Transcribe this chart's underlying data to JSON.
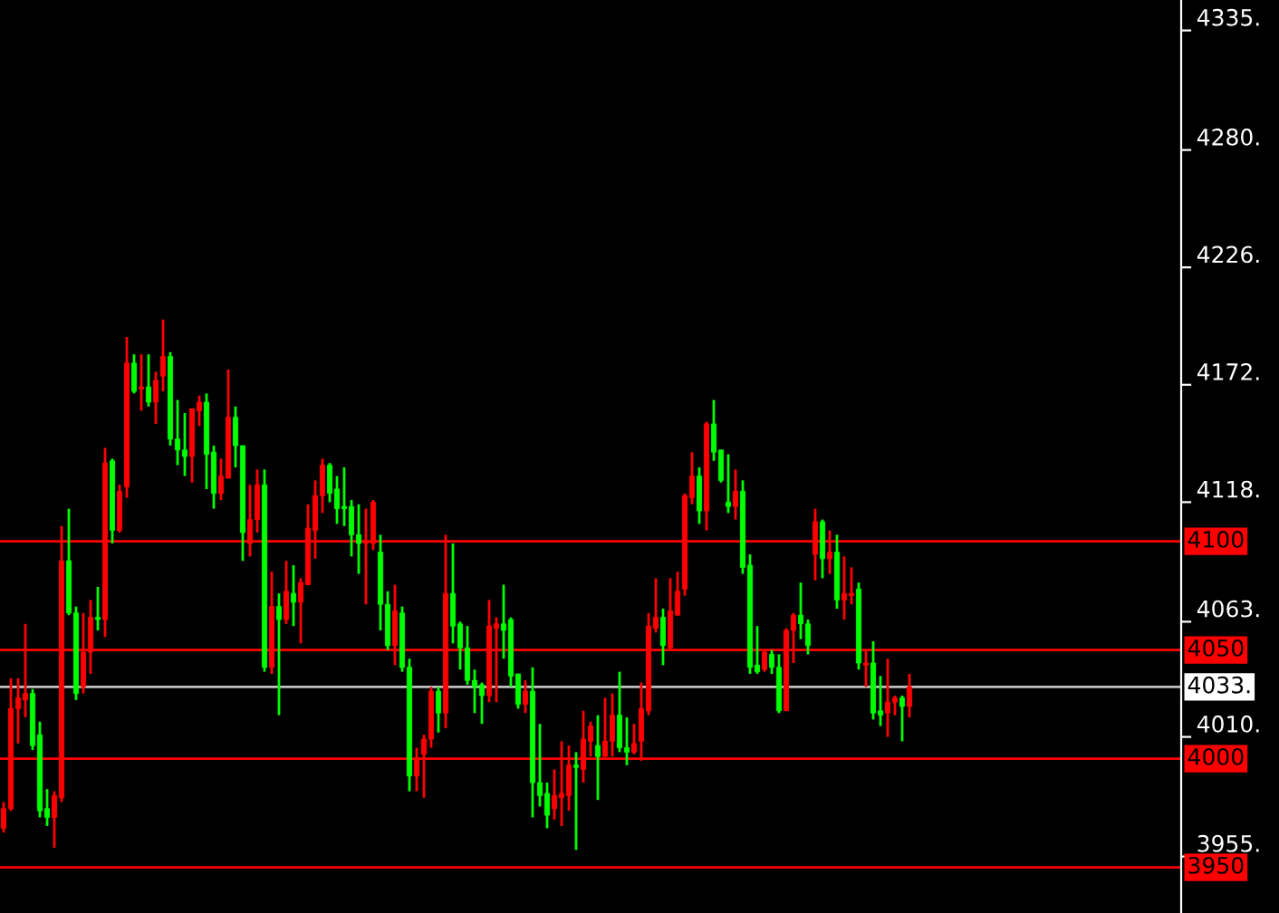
{
  "chart_data": {
    "type": "candlestick",
    "categories": [
      null,
      null,
      null,
      null,
      null,
      null,
      null,
      null,
      null,
      null,
      null,
      null,
      null,
      null,
      null,
      null,
      null,
      null,
      null,
      null,
      null,
      null,
      null,
      null,
      null,
      null,
      null,
      null,
      null,
      null,
      null,
      null,
      null,
      null,
      null,
      null,
      null,
      null,
      null,
      null,
      null,
      null,
      null,
      null,
      null,
      null,
      null,
      null,
      null,
      null,
      null,
      null,
      null,
      null,
      null,
      null,
      null,
      null,
      null,
      null,
      null,
      null,
      null,
      null,
      null,
      null,
      null,
      null,
      null,
      null,
      null,
      null,
      null,
      null,
      null,
      null,
      null,
      null,
      null,
      null,
      null,
      null,
      null,
      null,
      null,
      null,
      null,
      null,
      null,
      null,
      null,
      null,
      null,
      null,
      null,
      null,
      null,
      null,
      null,
      null,
      null,
      null,
      null,
      null,
      null,
      null,
      null,
      null,
      null,
      null,
      null,
      null,
      null,
      null,
      null,
      null,
      null,
      null,
      null,
      null,
      null,
      null,
      null,
      null,
      null,
      null,
      null,
      null,
      null,
      null,
      null,
      null,
      null,
      null,
      null,
      null,
      null,
      null,
      null,
      null,
      null,
      null,
      null,
      null,
      null,
      null,
      null,
      null,
      null,
      null,
      null,
      null,
      null,
      null,
      null,
      null,
      null,
      null,
      null,
      null,
      null,
      null,
      null
    ],
    "ohlc": [
      [
        3968,
        3980,
        3966,
        3977
      ],
      [
        3977,
        4037,
        3976,
        4023
      ],
      [
        4023,
        4037,
        4007,
        4028
      ],
      [
        4027,
        4062,
        4019,
        4030
      ],
      [
        4030,
        4032,
        4004,
        4006
      ],
      [
        4011,
        4017,
        3973,
        3976
      ],
      [
        3977,
        3986,
        3969,
        3973
      ],
      [
        3973,
        3985,
        3959,
        3983
      ],
      [
        3982,
        4107,
        3980,
        4091
      ],
      [
        4091,
        4115,
        4066,
        4067
      ],
      [
        4067,
        4070,
        4027,
        4030
      ],
      [
        4033,
        4067,
        4030,
        4049
      ],
      [
        4049,
        4073,
        4039,
        4065
      ],
      [
        4065,
        4079,
        4059,
        4064
      ],
      [
        4064,
        4143,
        4056,
        4136
      ],
      [
        4137,
        4138,
        4099,
        4105
      ],
      [
        4105,
        4126,
        4104,
        4123
      ],
      [
        4125,
        4194,
        4120,
        4182
      ],
      [
        4182,
        4186,
        4168,
        4169
      ],
      [
        4170,
        4186,
        4160,
        4171
      ],
      [
        4171,
        4186,
        4162,
        4164
      ],
      [
        4164,
        4178,
        4154,
        4174
      ],
      [
        4176,
        4202,
        4169,
        4185
      ],
      [
        4185,
        4187,
        4144,
        4147
      ],
      [
        4147,
        4165,
        4135,
        4142
      ],
      [
        4142,
        4159,
        4130,
        4139
      ],
      [
        4139,
        4161,
        4127,
        4161
      ],
      [
        4160,
        4167,
        4153,
        4164
      ],
      [
        4164,
        4168,
        4124,
        4140
      ],
      [
        4141,
        4144,
        4115,
        4122
      ],
      [
        4122,
        4138,
        4119,
        4130
      ],
      [
        4129,
        4179,
        4129,
        4157
      ],
      [
        4157,
        4162,
        4134,
        4144
      ],
      [
        4144,
        4144,
        4091,
        4104
      ],
      [
        4099,
        4126,
        4093,
        4110
      ],
      [
        4110,
        4133,
        4104,
        4126
      ],
      [
        4126,
        4133,
        4040,
        4042
      ],
      [
        4042,
        4086,
        4039,
        4070
      ],
      [
        4070,
        4076,
        4020,
        4064
      ],
      [
        4064,
        4091,
        4062,
        4077
      ],
      [
        4076,
        4089,
        4061,
        4072
      ],
      [
        4072,
        4083,
        4053,
        4081
      ],
      [
        4080,
        4117,
        4080,
        4106
      ],
      [
        4105,
        4128,
        4092,
        4121
      ],
      [
        4121,
        4138,
        4113,
        4135
      ],
      [
        4135,
        4136,
        4118,
        4122
      ],
      [
        4124,
        4130,
        4108,
        4115
      ],
      [
        4116,
        4134,
        4107,
        4115
      ],
      [
        4116,
        4119,
        4093,
        4103
      ],
      [
        4103,
        4117,
        4085,
        4099
      ],
      [
        4099,
        4115,
        4071,
        4100
      ],
      [
        4099,
        4119,
        4096,
        4118
      ],
      [
        4095,
        4103,
        4059,
        4071
      ],
      [
        4071,
        4077,
        4050,
        4052
      ],
      [
        4052,
        4080,
        4043,
        4068
      ],
      [
        4067,
        4070,
        4040,
        4042
      ],
      [
        4042,
        4046,
        3985,
        3992
      ],
      [
        3992,
        4005,
        3985,
        4000
      ],
      [
        4002,
        4011,
        3982,
        4009
      ],
      [
        4009,
        4033,
        4005,
        4031
      ],
      [
        4031,
        4033,
        4012,
        4021
      ],
      [
        4021,
        4103,
        4014,
        4076
      ],
      [
        4076,
        4099,
        4053,
        4061
      ],
      [
        4062,
        4063,
        4041,
        4051
      ],
      [
        4051,
        4061,
        4034,
        4036
      ],
      [
        4036,
        4041,
        4021,
        4033
      ],
      [
        4034,
        4035,
        4016,
        4029
      ],
      [
        4029,
        4073,
        4026,
        4061
      ],
      [
        4060,
        4065,
        4026,
        4062
      ],
      [
        4062,
        4080,
        4046,
        4059
      ],
      [
        4064,
        4065,
        4033,
        4038
      ],
      [
        4039,
        4039,
        4023,
        4025
      ],
      [
        4025,
        4036,
        4021,
        4031
      ],
      [
        4031,
        4042,
        3973,
        3989
      ],
      [
        3989,
        4016,
        3978,
        3983
      ],
      [
        3984,
        3989,
        3968,
        3974
      ],
      [
        3977,
        3995,
        3972,
        3983
      ],
      [
        3982,
        4008,
        3969,
        3984
      ],
      [
        3983,
        4006,
        3976,
        3997
      ],
      [
        3997,
        4003,
        3958,
        3996
      ],
      [
        3995,
        4022,
        3989,
        4009
      ],
      [
        4008,
        4017,
        4001,
        4015
      ],
      [
        4006,
        4020,
        3981,
        4001
      ],
      [
        4001,
        4028,
        4001,
        4008
      ],
      [
        4008,
        4030,
        4001,
        4020
      ],
      [
        4020,
        4040,
        4003,
        4005
      ],
      [
        4005,
        4019,
        3997,
        4003
      ],
      [
        4003,
        4016,
        4002,
        4007
      ],
      [
        4008,
        4035,
        3999,
        4023
      ],
      [
        4022,
        4067,
        4020,
        4061
      ],
      [
        4060,
        4083,
        4058,
        4065
      ],
      [
        4065,
        4069,
        4043,
        4052
      ],
      [
        4051,
        4083,
        4050,
        4068
      ],
      [
        4066,
        4086,
        4066,
        4077
      ],
      [
        4078,
        4122,
        4075,
        4121
      ],
      [
        4120,
        4141,
        4117,
        4130
      ],
      [
        4130,
        4134,
        4108,
        4114
      ],
      [
        4114,
        4155,
        4105,
        4154
      ],
      [
        4154,
        4165,
        4137,
        4141
      ],
      [
        4142,
        4142,
        4127,
        4128
      ],
      [
        4118,
        4140,
        4113,
        4116
      ],
      [
        4116,
        4133,
        4110,
        4123
      ],
      [
        4123,
        4128,
        4085,
        4088
      ],
      [
        4089,
        4094,
        4039,
        4042
      ],
      [
        4043,
        4061,
        4039,
        4040
      ],
      [
        4041,
        4050,
        4040,
        4049
      ],
      [
        4048,
        4050,
        4039,
        4042
      ],
      [
        4042,
        4048,
        4021,
        4022
      ],
      [
        4022,
        4060,
        4022,
        4059
      ],
      [
        4059,
        4067,
        4044,
        4066
      ],
      [
        4066,
        4081,
        4055,
        4062
      ],
      [
        4062,
        4064,
        4048,
        4052
      ],
      [
        4094,
        4115,
        4082,
        4109
      ],
      [
        4109,
        4110,
        4083,
        4092
      ],
      [
        4092,
        4105,
        4085,
        4095
      ],
      [
        4095,
        4103,
        4069,
        4073
      ],
      [
        4073,
        4093,
        4064,
        4076
      ],
      [
        4075,
        4088,
        4071,
        4076
      ],
      [
        4078,
        4081,
        4041,
        4044
      ],
      [
        4043,
        4050,
        4033,
        4044
      ],
      [
        4044,
        4054,
        4018,
        4021
      ],
      [
        4022,
        4038,
        4015,
        4020
      ],
      [
        4021,
        4046,
        4010,
        4026
      ],
      [
        4026,
        4029,
        4020,
        4028
      ],
      [
        4028,
        4029,
        4008,
        4024
      ],
      [
        4024,
        4039,
        4019,
        4033
      ],
      null,
      null,
      null,
      null,
      null,
      null,
      null,
      null,
      null,
      null,
      null,
      null,
      null,
      null,
      null,
      null,
      null,
      null,
      null,
      null,
      null,
      null,
      null,
      null,
      null,
      null,
      null,
      null,
      null,
      null,
      null,
      null,
      null,
      null,
      null,
      null,
      null
    ],
    "colors": [
      "#ff0000",
      "#ff0000",
      "#ff0000",
      "#ff0000",
      "#00ff00",
      "#00ff00",
      "#00ff00",
      "#ff0000",
      "#ff0000",
      "#00ff00",
      "#00ff00",
      "#ff0000",
      "#ff0000",
      "#00ff00",
      "#ff0000",
      "#00ff00",
      "#ff0000",
      "#ff0000",
      "#00ff00",
      "#ff0000",
      "#00ff00",
      "#ff0000",
      "#ff0000",
      "#00ff00",
      "#00ff00",
      "#00ff00",
      "#ff0000",
      "#ff0000",
      "#00ff00",
      "#00ff00",
      "#ff0000",
      "#ff0000",
      "#00ff00",
      "#00ff00",
      "#ff0000",
      "#ff0000",
      "#00ff00",
      "#ff0000",
      "#00ff00",
      "#ff0000",
      "#00ff00",
      "#ff0000",
      "#ff0000",
      "#ff0000",
      "#ff0000",
      "#00ff00",
      "#00ff00",
      "#00ff00",
      "#00ff00",
      "#00ff00",
      "#ff0000",
      "#ff0000",
      "#00ff00",
      "#00ff00",
      "#ff0000",
      "#00ff00",
      "#00ff00",
      "#ff0000",
      "#ff0000",
      "#ff0000",
      "#00ff00",
      "#ff0000",
      "#00ff00",
      "#00ff00",
      "#00ff00",
      "#00ff00",
      "#00ff00",
      "#ff0000",
      "#ff0000",
      "#00ff00",
      "#00ff00",
      "#00ff00",
      "#ff0000",
      "#00ff00",
      "#00ff00",
      "#00ff00",
      "#ff0000",
      "#ff0000",
      "#ff0000",
      "#00ff00",
      "#ff0000",
      "#ff0000",
      "#00ff00",
      "#ff0000",
      "#ff0000",
      "#00ff00",
      "#00ff00",
      "#ff0000",
      "#ff0000",
      "#ff0000",
      "#ff0000",
      "#00ff00",
      "#ff0000",
      "#ff0000",
      "#ff0000",
      "#ff0000",
      "#00ff00",
      "#ff0000",
      "#00ff00",
      "#00ff00",
      "#00ff00",
      "#ff0000",
      "#00ff00",
      "#00ff00",
      "#00ff00",
      "#ff0000",
      "#00ff00",
      "#00ff00",
      "#ff0000",
      "#ff0000",
      "#00ff00",
      "#00ff00",
      "#ff0000",
      "#00ff00",
      "#ff0000",
      "#00ff00",
      "#ff0000",
      "#ff0000",
      "#00ff00",
      "#ff0000",
      "#00ff00",
      "#00ff00",
      "#ff0000",
      "#ff0000",
      "#00ff00",
      "#ff0000",
      null,
      null,
      null,
      null,
      null,
      null,
      null,
      null,
      null,
      null,
      null,
      null,
      null,
      null,
      null,
      null,
      null,
      null,
      null,
      null,
      null,
      null,
      null,
      null,
      null,
      null,
      null,
      null,
      null,
      null,
      null,
      null,
      null,
      null,
      null,
      null,
      null
    ],
    "ylim": [
      3929,
      4349
    ],
    "yticks": [
      {
        "value": 4335,
        "label": "4335."
      },
      {
        "value": 4280,
        "label": "4280."
      },
      {
        "value": 4226,
        "label": "4226."
      },
      {
        "value": 4172,
        "label": "4172."
      },
      {
        "value": 4118,
        "label": "4118."
      },
      {
        "value": 4063,
        "label": "4063."
      },
      {
        "value": 4010,
        "label": "4010."
      },
      {
        "value": 3955,
        "label": "3955."
      }
    ],
    "ref_lines": [
      {
        "axis": "y",
        "value": 4100,
        "label": "4100",
        "color": "#ff0000"
      },
      {
        "axis": "y",
        "value": 4050,
        "label": "4050",
        "color": "#ff0000"
      },
      {
        "axis": "y",
        "value": 4033,
        "label": "4033.",
        "color": "#c0c0c0"
      },
      {
        "axis": "y",
        "value": 4000,
        "label": "4000",
        "color": "#ff0000"
      },
      {
        "axis": "y",
        "value": 3950,
        "label": "3950",
        "color": "#ff0000"
      }
    ],
    "grid": false,
    "legend": false
  }
}
